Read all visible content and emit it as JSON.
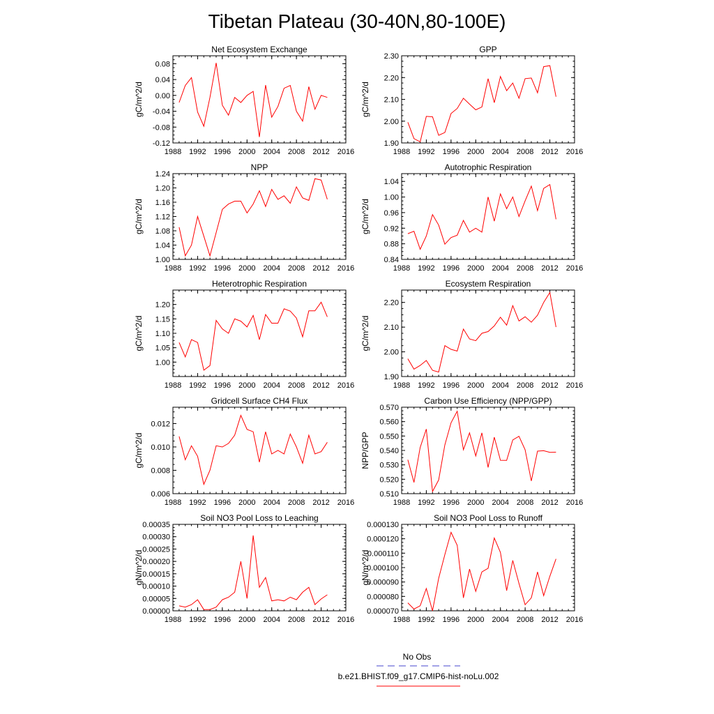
{
  "page_title": "Tibetan Plateau (30-40N,80-100E)",
  "legend": {
    "items": [
      {
        "label": "No Obs",
        "color": "#4444cc",
        "dash": true
      },
      {
        "label": "b.e21.BHIST.f09_g17.CMIP6-hist-noLu.002",
        "color": "#ff0000",
        "dash": false
      }
    ]
  },
  "line_color": "#ff0000",
  "chart_data": [
    {
      "type": "line",
      "title": "Net Ecosystem Exchange",
      "ylabel": "gC/m^2/d",
      "xlim": [
        1988,
        2016
      ],
      "ylim": [
        -0.12,
        0.1
      ],
      "xticks": [
        "1988",
        "1992",
        "1996",
        "2000",
        "2004",
        "2008",
        "2012",
        "2016"
      ],
      "yticks": [
        "-0.12",
        "-0.08",
        "-0.04",
        "0.00",
        "0.04",
        "0.08"
      ],
      "x": [
        1989,
        1990,
        1991,
        1992,
        1993,
        1994,
        1995,
        1996,
        1997,
        1998,
        1999,
        2000,
        2001,
        2002,
        2003,
        2004,
        2005,
        2006,
        2007,
        2008,
        2009,
        2010,
        2011,
        2012,
        2013
      ],
      "y": [
        -0.018,
        0.025,
        0.045,
        -0.042,
        -0.078,
        -0.005,
        0.082,
        -0.025,
        -0.05,
        -0.005,
        -0.018,
        0.0,
        0.01,
        -0.105,
        0.026,
        -0.055,
        -0.028,
        0.018,
        0.025,
        -0.04,
        -0.065,
        0.022,
        -0.035,
        0.0,
        -0.005
      ]
    },
    {
      "type": "line",
      "title": "GPP",
      "ylabel": "gC/m^2/d",
      "xlim": [
        1988,
        2016
      ],
      "ylim": [
        1.9,
        2.3
      ],
      "xticks": [
        "1988",
        "1992",
        "1996",
        "2000",
        "2004",
        "2008",
        "2012",
        "2016"
      ],
      "yticks": [
        "1.90",
        "2.00",
        "2.10",
        "2.20",
        "2.30"
      ],
      "x": [
        1989,
        1990,
        1991,
        1992,
        1993,
        1994,
        1995,
        1996,
        1997,
        1998,
        1999,
        2000,
        2001,
        2002,
        2003,
        2004,
        2005,
        2006,
        2007,
        2008,
        2009,
        2010,
        2011,
        2012,
        2013
      ],
      "y": [
        1.995,
        1.92,
        1.905,
        2.022,
        2.02,
        1.935,
        1.948,
        2.035,
        2.058,
        2.105,
        2.078,
        2.052,
        2.065,
        2.195,
        2.085,
        2.205,
        2.14,
        2.175,
        2.105,
        2.195,
        2.198,
        2.13,
        2.25,
        2.255,
        2.112
      ]
    },
    {
      "type": "line",
      "title": "NPP",
      "ylabel": "gC/m^2/d",
      "xlim": [
        1988,
        2016
      ],
      "ylim": [
        1.0,
        1.24
      ],
      "xticks": [
        "1988",
        "1992",
        "1996",
        "2000",
        "2004",
        "2008",
        "2012",
        "2016"
      ],
      "yticks": [
        "1.00",
        "1.04",
        "1.08",
        "1.12",
        "1.16",
        "1.20",
        "1.24"
      ],
      "x": [
        1989,
        1990,
        1991,
        1992,
        1993,
        1994,
        1995,
        1996,
        1997,
        1998,
        1999,
        2000,
        2001,
        2002,
        2003,
        2004,
        2005,
        2006,
        2007,
        2008,
        2009,
        2010,
        2011,
        2012,
        2013
      ],
      "y": [
        1.09,
        1.01,
        1.04,
        1.12,
        1.065,
        1.01,
        1.075,
        1.14,
        1.155,
        1.163,
        1.163,
        1.13,
        1.155,
        1.192,
        1.148,
        1.196,
        1.168,
        1.178,
        1.157,
        1.203,
        1.172,
        1.165,
        1.226,
        1.222,
        1.168
      ]
    },
    {
      "type": "line",
      "title": "Autotrophic Respiration",
      "ylabel": "gC/m^2/d",
      "xlim": [
        1988,
        2016
      ],
      "ylim": [
        0.84,
        1.06
      ],
      "xticks": [
        "1988",
        "1992",
        "1996",
        "2000",
        "2004",
        "2008",
        "2012",
        "2016"
      ],
      "yticks": [
        "0.84",
        "0.88",
        "0.92",
        "0.96",
        "1.00",
        "1.04"
      ],
      "x": [
        1989,
        1990,
        1991,
        1992,
        1993,
        1994,
        1995,
        1996,
        1997,
        1998,
        1999,
        2000,
        2001,
        2002,
        2003,
        2004,
        2005,
        2006,
        2007,
        2008,
        2009,
        2010,
        2011,
        2012,
        2013
      ],
      "y": [
        0.906,
        0.912,
        0.866,
        0.9,
        0.955,
        0.928,
        0.879,
        0.896,
        0.902,
        0.94,
        0.91,
        0.92,
        0.91,
        1.0,
        0.938,
        1.008,
        0.97,
        1.0,
        0.95,
        0.99,
        1.028,
        0.965,
        1.022,
        1.032,
        0.943
      ]
    },
    {
      "type": "line",
      "title": "Heterotrophic Respiration",
      "ylabel": "gC/m^2/d",
      "xlim": [
        1988,
        2016
      ],
      "ylim": [
        0.95,
        1.25
      ],
      "xticks": [
        "1988",
        "1992",
        "1996",
        "2000",
        "2004",
        "2008",
        "2012",
        "2016"
      ],
      "yticks": [
        "1.00",
        "1.05",
        "1.10",
        "1.15",
        "1.20"
      ],
      "x": [
        1989,
        1990,
        1991,
        1992,
        1993,
        1994,
        1995,
        1996,
        1997,
        1998,
        1999,
        2000,
        2001,
        2002,
        2003,
        2004,
        2005,
        2006,
        2007,
        2008,
        2009,
        2010,
        2011,
        2012,
        2013
      ],
      "y": [
        1.068,
        1.018,
        1.078,
        1.068,
        0.972,
        0.988,
        1.145,
        1.115,
        1.1,
        1.15,
        1.142,
        1.122,
        1.162,
        1.078,
        1.165,
        1.135,
        1.135,
        1.185,
        1.177,
        1.153,
        1.088,
        1.178,
        1.178,
        1.208,
        1.157
      ]
    },
    {
      "type": "line",
      "title": "Ecosystem Respiration",
      "ylabel": "gC/m^2/d",
      "xlim": [
        1988,
        2016
      ],
      "ylim": [
        1.9,
        2.25
      ],
      "xticks": [
        "1988",
        "1992",
        "1996",
        "2000",
        "2004",
        "2008",
        "2012",
        "2016"
      ],
      "yticks": [
        "1.90",
        "2.00",
        "2.10",
        "2.20"
      ],
      "x": [
        1989,
        1990,
        1991,
        1992,
        1993,
        1994,
        1995,
        1996,
        1997,
        1998,
        1999,
        2000,
        2001,
        2002,
        2003,
        2004,
        2005,
        2006,
        2007,
        2008,
        2009,
        2010,
        2011,
        2012,
        2013
      ],
      "y": [
        1.972,
        1.93,
        1.945,
        1.965,
        1.925,
        1.918,
        2.025,
        2.01,
        2.003,
        2.092,
        2.052,
        2.045,
        2.075,
        2.082,
        2.105,
        2.14,
        2.108,
        2.187,
        2.125,
        2.142,
        2.12,
        2.148,
        2.2,
        2.24,
        2.1
      ]
    },
    {
      "type": "line",
      "title": "Gridcell Surface CH4 Flux",
      "ylabel": "gC/m^2/d",
      "xlim": [
        1988,
        2016
      ],
      "ylim": [
        0.006,
        0.0134
      ],
      "xticks": [
        "1988",
        "1992",
        "1996",
        "2000",
        "2004",
        "2008",
        "2012",
        "2016"
      ],
      "yticks": [
        "0.006",
        "0.008",
        "0.010",
        "0.012"
      ],
      "x": [
        1989,
        1990,
        1991,
        1992,
        1993,
        1994,
        1995,
        1996,
        1997,
        1998,
        1999,
        2000,
        2001,
        2002,
        2003,
        2004,
        2005,
        2006,
        2007,
        2008,
        2009,
        2010,
        2011,
        2012,
        2013
      ],
      "y": [
        0.0109,
        0.0089,
        0.0101,
        0.0092,
        0.0068,
        0.008,
        0.0101,
        0.01,
        0.0103,
        0.011,
        0.0127,
        0.0115,
        0.0113,
        0.0087,
        0.0113,
        0.0094,
        0.0097,
        0.0094,
        0.0111,
        0.01,
        0.0086,
        0.011,
        0.0094,
        0.0096,
        0.0104
      ]
    },
    {
      "type": "line",
      "title": "Carbon Use Efficiency (NPP/GPP)",
      "ylabel": "NPP/GPP",
      "xlim": [
        1988,
        2016
      ],
      "ylim": [
        0.51,
        0.57
      ],
      "xticks": [
        "1988",
        "1992",
        "1996",
        "2000",
        "2004",
        "2008",
        "2012",
        "2016"
      ],
      "yticks": [
        "0.510",
        "0.520",
        "0.530",
        "0.540",
        "0.550",
        "0.560",
        "0.570"
      ],
      "x": [
        1989,
        1990,
        1991,
        1992,
        1993,
        1994,
        1995,
        1996,
        1997,
        1998,
        1999,
        2000,
        2001,
        2002,
        2003,
        2004,
        2005,
        2006,
        2007,
        2008,
        2009,
        2010,
        2011,
        2012,
        2013
      ],
      "y": [
        0.5335,
        0.5178,
        0.5421,
        0.5548,
        0.5115,
        0.5195,
        0.5438,
        0.5592,
        0.5672,
        0.5405,
        0.5522,
        0.5362,
        0.5522,
        0.5282,
        0.5492,
        0.5332,
        0.5331,
        0.5473,
        0.5498,
        0.5405,
        0.5188,
        0.5395,
        0.5398,
        0.5387,
        0.5388
      ]
    },
    {
      "type": "line",
      "title": "Soil NO3 Pool Loss to Leaching",
      "ylabel": "gN/m^2/d",
      "xlim": [
        1988,
        2016
      ],
      "ylim": [
        0.0,
        0.00035
      ],
      "xticks": [
        "1988",
        "1992",
        "1996",
        "2000",
        "2004",
        "2008",
        "2012",
        "2016"
      ],
      "yticks": [
        "0.00000",
        "0.00005",
        "0.00010",
        "0.00015",
        "0.00020",
        "0.00025",
        "0.00030",
        "0.00035"
      ],
      "x": [
        1989,
        1990,
        1991,
        1992,
        1993,
        1994,
        1995,
        1996,
        1997,
        1998,
        1999,
        2000,
        2001,
        2002,
        2003,
        2004,
        2005,
        2006,
        2007,
        2008,
        2009,
        2010,
        2011,
        2012,
        2013
      ],
      "y": [
        2e-05,
        1.5e-05,
        2.5e-05,
        4.5e-05,
        5e-06,
        5e-06,
        1.5e-05,
        4.5e-05,
        5.5e-05,
        7.5e-05,
        0.0002,
        5e-05,
        0.000305,
        9.5e-05,
        0.000135,
        4e-05,
        4.5e-05,
        4e-05,
        5.5e-05,
        4.5e-05,
        7.5e-05,
        9.5e-05,
        2.5e-05,
        4.8e-05,
        6.5e-05
      ]
    },
    {
      "type": "line",
      "title": "Soil NO3 Pool Loss to Runoff",
      "ylabel": "gN/m^2/d",
      "xlim": [
        1988,
        2016
      ],
      "ylim": [
        7e-05,
        0.00013
      ],
      "xticks": [
        "1988",
        "1992",
        "1996",
        "2000",
        "2004",
        "2008",
        "2012",
        "2016"
      ],
      "yticks": [
        "0.000070",
        "0.000080",
        "0.000090",
        "0.000100",
        "0.000110",
        "0.000120",
        "0.000130"
      ],
      "x": [
        1989,
        1990,
        1991,
        1992,
        1993,
        1994,
        1995,
        1996,
        1997,
        1998,
        1999,
        2000,
        2001,
        2002,
        2003,
        2004,
        2005,
        2006,
        2007,
        2008,
        2009,
        2010,
        2011,
        2012,
        2013
      ],
      "y": [
        7.55e-05,
        7.12e-05,
        7.35e-05,
        8.55e-05,
        7e-05,
        9.25e-05,
        0.000109,
        0.0001245,
        0.0001155,
        7.9e-05,
        9.9e-05,
        8.35e-05,
        9.7e-05,
        9.95e-05,
        0.0001205,
        0.0001105,
        8.4e-05,
        0.000105,
        8.9e-05,
        7.42e-05,
        7.9e-05,
        9.7e-05,
        8.05e-05,
        9.4e-05,
        0.000106
      ]
    }
  ]
}
